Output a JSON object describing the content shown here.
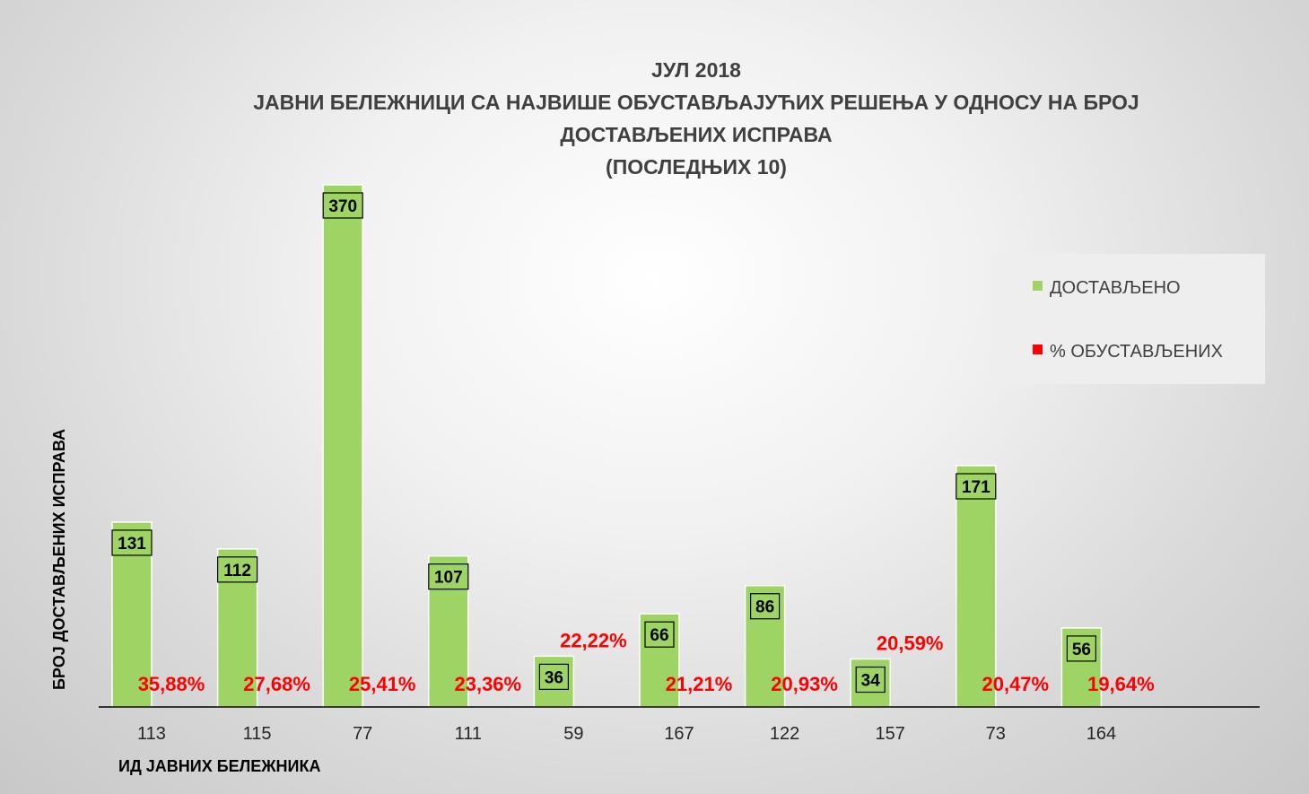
{
  "chart_data": {
    "type": "bar",
    "title": [
      "ЈУЛ 2018",
      "ЈАВНИ БЕЛЕЖНИЦИ СА НАЈВИШЕ ОБУСТАВЉАЈУЋИХ РЕШЕЊА У ОДНОСУ НА БРОЈ",
      "ДОСТАВЉЕНИХ ИСПРАВА",
      "(ПОСЛЕДЊИХ 10)"
    ],
    "xlabel": "ИД ЈАВНИХ БЕЛЕЖНИКА",
    "ylabel": "БРОЈ ДОСТАВЉЕНИХ ИСПРАВА",
    "categories": [
      "113",
      "115",
      "77",
      "111",
      "59",
      "167",
      "122",
      "157",
      "73",
      "164"
    ],
    "series": [
      {
        "name": "ДОСТАВЉЕНО",
        "color": "#9ed463",
        "values": [
          131,
          112,
          370,
          107,
          36,
          66,
          86,
          34,
          171,
          56
        ]
      },
      {
        "name": "% ОБУСТАВЉЕНИХ",
        "color": "#ff0000",
        "values": [
          "35,88%",
          "27,68%",
          "25,41%",
          "23,36%",
          "22,22%",
          "21,21%",
          "20,93%",
          "20,59%",
          "20,47%",
          "19,64%"
        ]
      }
    ],
    "ylim": [
      0,
      370
    ],
    "grid": false,
    "legend_position": "right"
  }
}
